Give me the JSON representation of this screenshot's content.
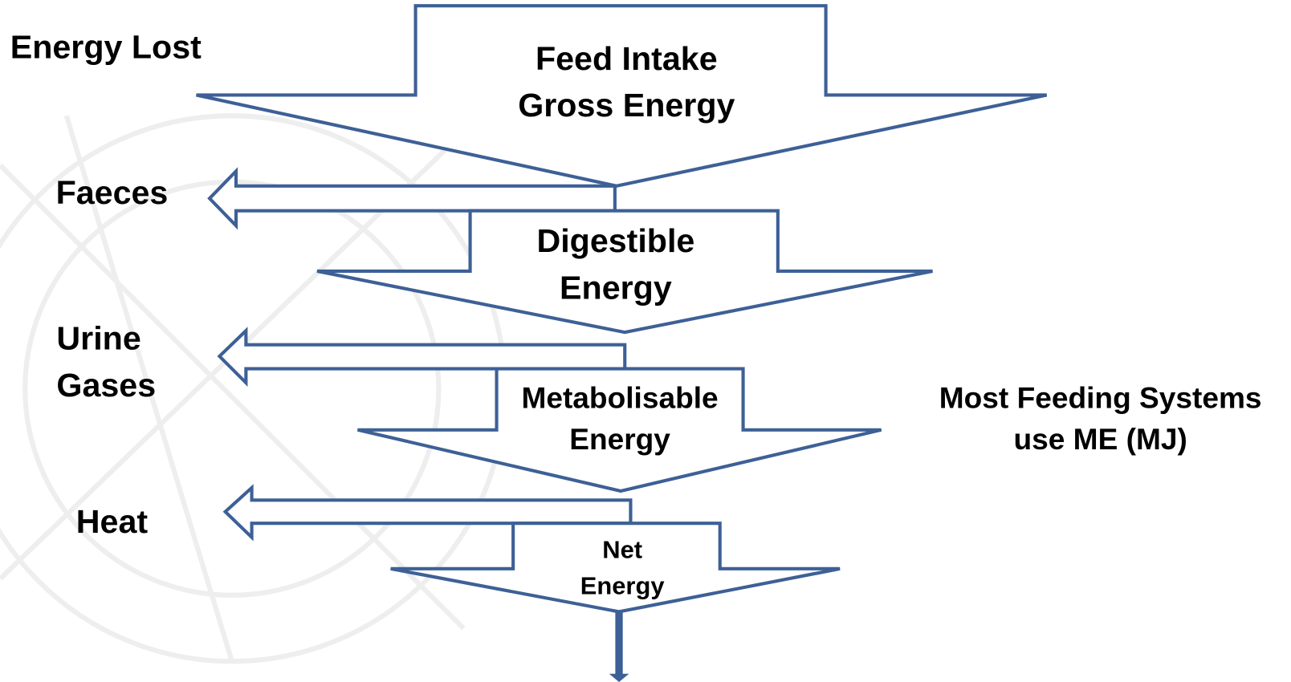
{
  "title": "Energy Lost",
  "nodes": [
    {
      "lines": [
        "Feed Intake",
        "Gross Energy"
      ]
    },
    {
      "lines": [
        "Digestible",
        "Energy"
      ]
    },
    {
      "lines": [
        "Metabolisable",
        "Energy"
      ]
    },
    {
      "lines": [
        "Net",
        "Energy"
      ]
    }
  ],
  "losses": [
    {
      "lines": [
        "Faeces"
      ]
    },
    {
      "lines": [
        "Urine",
        "Gases"
      ]
    },
    {
      "lines": [
        "Heat"
      ]
    }
  ],
  "note": {
    "lines": [
      "Most Feeding Systems",
      "use ME (MJ)"
    ]
  }
}
